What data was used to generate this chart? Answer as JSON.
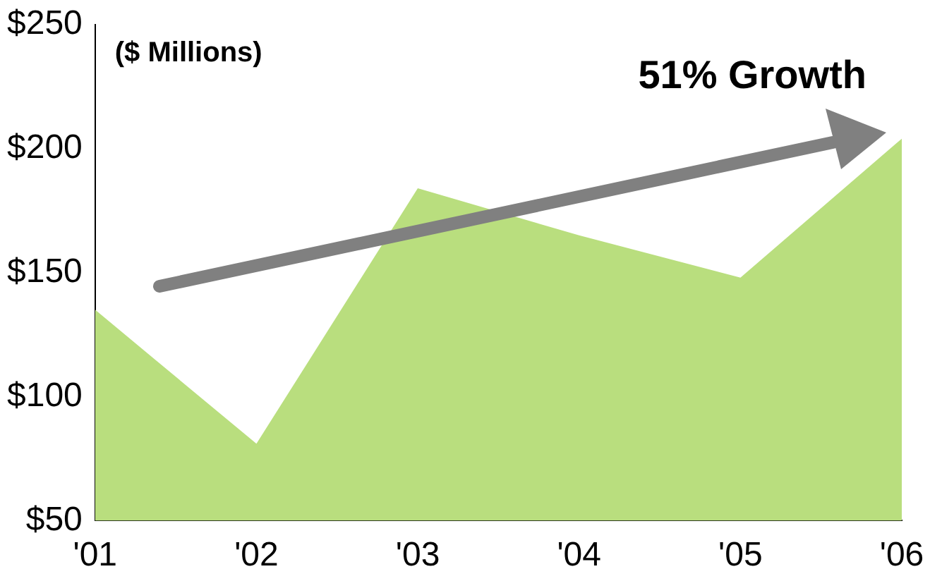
{
  "chart_data": {
    "type": "area",
    "categories": [
      "'01",
      "'02",
      "'03",
      "'04",
      "'05",
      "'06"
    ],
    "series": [
      {
        "color": "#b9de7e",
        "values": [
          135,
          81,
          184,
          165,
          148,
          204
        ]
      }
    ],
    "ylim": [
      50,
      250
    ],
    "yticks": [
      {
        "value": 50,
        "label": "$50"
      },
      {
        "value": 100,
        "label": "$100"
      },
      {
        "value": 150,
        "label": "$150"
      },
      {
        "value": 200,
        "label": "$200"
      },
      {
        "value": 250,
        "label": "$250"
      }
    ],
    "grid": false,
    "legend": false,
    "annotations": [
      "($ Millions)",
      "51% Growth"
    ]
  }
}
